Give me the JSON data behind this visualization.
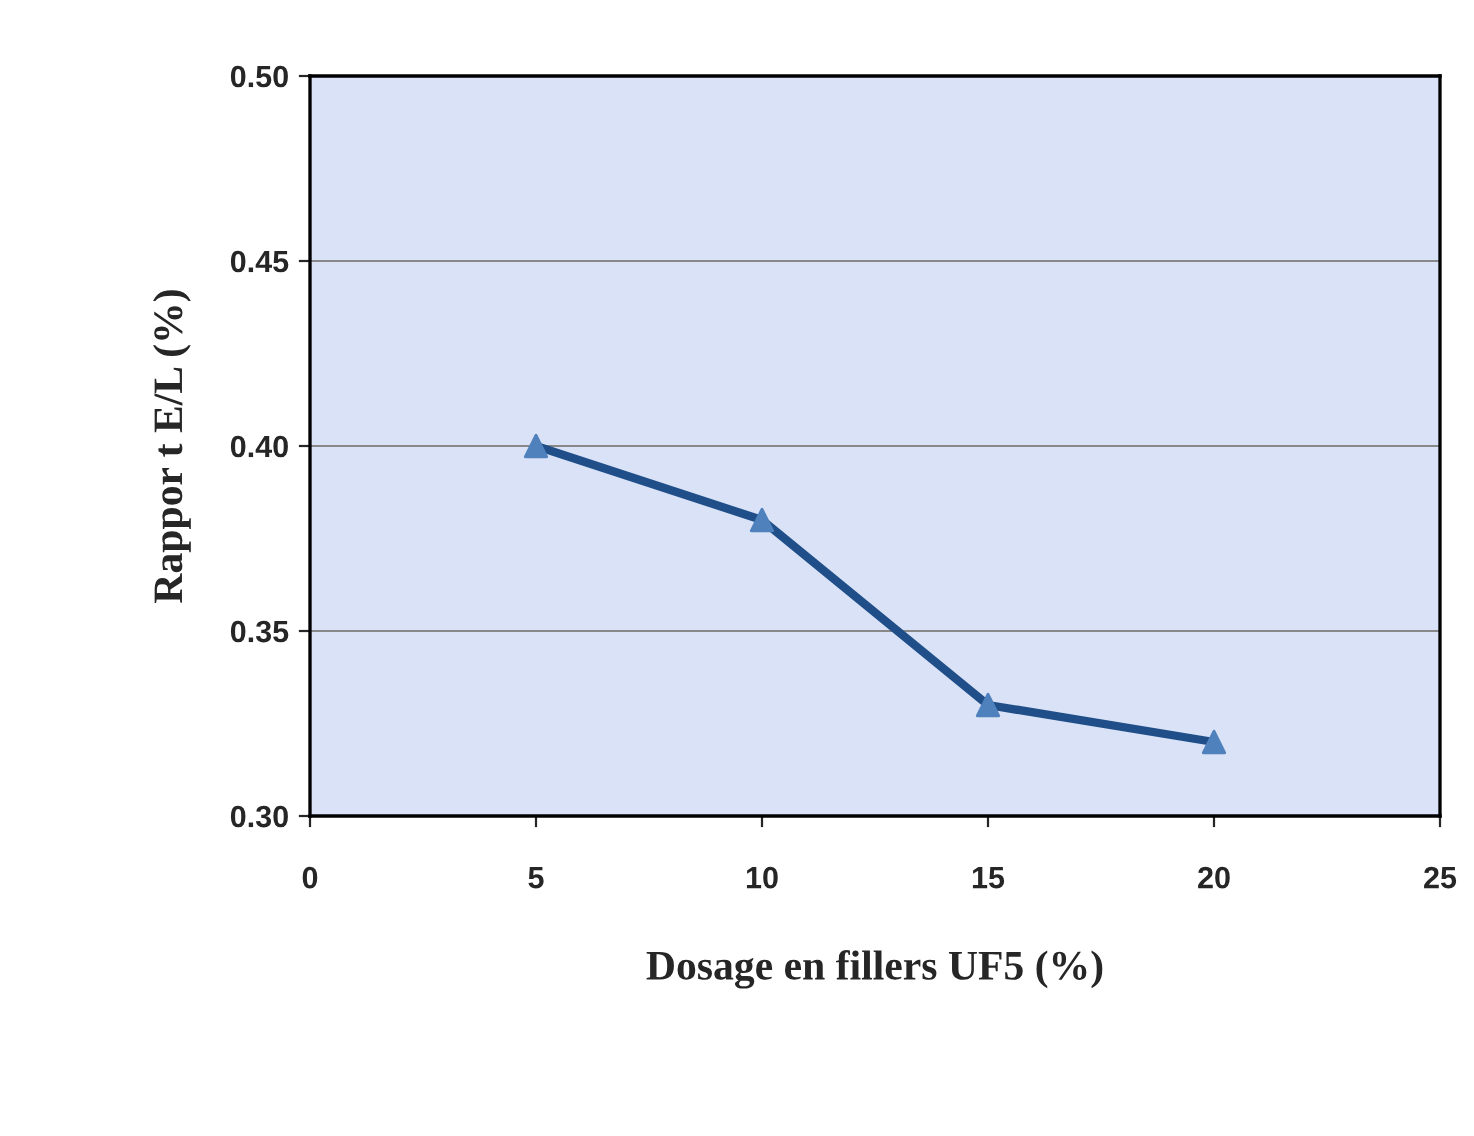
{
  "chart_data": {
    "type": "line",
    "xlabel": "Dosage en fillers UF5 (%)",
    "ylabel": "Rappor t E/L (%)",
    "x": [
      5,
      10,
      15,
      20
    ],
    "series": [
      {
        "color": "#1f4e89",
        "values": [
          0.4,
          0.38,
          0.33,
          0.32
        ]
      }
    ],
    "marker": "triangle",
    "line_style": "solid",
    "xlim": [
      0,
      25
    ],
    "xticks": [
      0,
      5,
      10,
      15,
      20,
      25
    ],
    "ylim": [
      0.3,
      0.5
    ],
    "yticks": [
      {
        "value": 0.3,
        "label": "0.30"
      },
      {
        "value": 0.35,
        "label": "0.35"
      },
      {
        "value": 0.4,
        "label": "0.40"
      },
      {
        "value": 0.45,
        "label": "0.45"
      },
      {
        "value": 0.5,
        "label": "0.50"
      }
    ],
    "grid": "y"
  }
}
